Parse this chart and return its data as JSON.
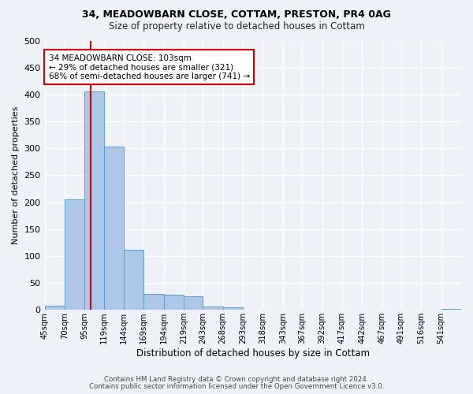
{
  "title1": "34, MEADOWBARN CLOSE, COTTAM, PRESTON, PR4 0AG",
  "title2": "Size of property relative to detached houses in Cottam",
  "xlabel": "Distribution of detached houses by size in Cottam",
  "ylabel": "Number of detached properties",
  "bin_labels": [
    "45sqm",
    "70sqm",
    "95sqm",
    "119sqm",
    "144sqm",
    "169sqm",
    "194sqm",
    "219sqm",
    "243sqm",
    "268sqm",
    "293sqm",
    "318sqm",
    "343sqm",
    "367sqm",
    "392sqm",
    "417sqm",
    "442sqm",
    "467sqm",
    "491sqm",
    "516sqm",
    "541sqm"
  ],
  "bar_values": [
    8,
    205,
    405,
    303,
    112,
    29,
    28,
    25,
    6,
    5,
    0,
    0,
    0,
    0,
    0,
    0,
    0,
    0,
    0,
    0,
    2
  ],
  "bar_color": "#aec6e8",
  "bar_edge_color": "#5a9fd4",
  "vline_color": "#cc0000",
  "annotation_text": "34 MEADOWBARN CLOSE: 103sqm\n← 29% of detached houses are smaller (321)\n68% of semi-detached houses are larger (741) →",
  "annotation_box_color": "#cc0000",
  "ylim": [
    0,
    500
  ],
  "yticks": [
    0,
    50,
    100,
    150,
    200,
    250,
    300,
    350,
    400,
    450,
    500
  ],
  "footer1": "Contains HM Land Registry data © Crown copyright and database right 2024.",
  "footer2": "Contains public sector information licensed under the Open Government Licence v3.0.",
  "bg_color": "#eef2f8",
  "plot_bg_color": "#eef2f8",
  "grid_color": "#ffffff",
  "title1_fontsize": 9,
  "title2_fontsize": 8.5,
  "annot_fontsize": 7.5,
  "ylabel_fontsize": 8,
  "xlabel_fontsize": 8.5
}
